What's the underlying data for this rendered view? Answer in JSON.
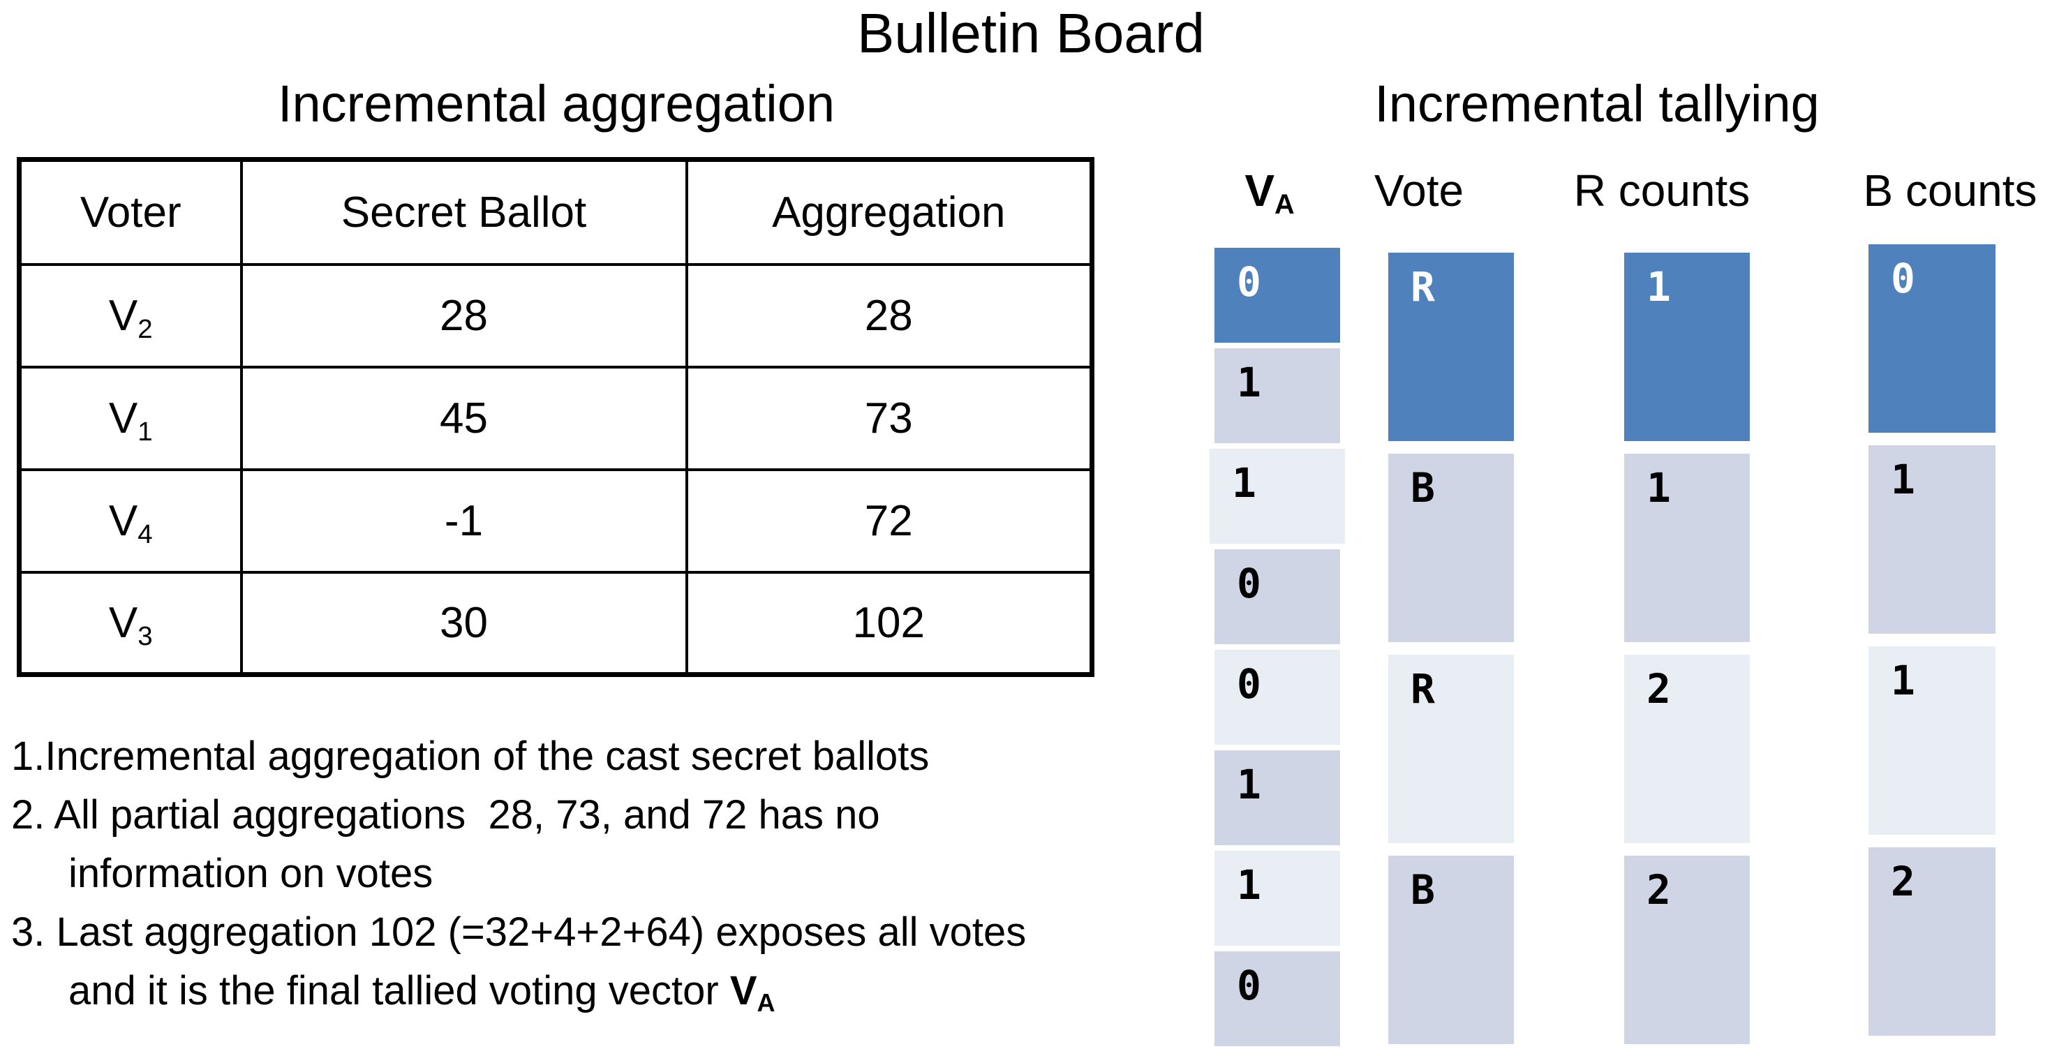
{
  "title": "Bulletin Board",
  "aggregation": {
    "heading": "Incremental aggregation",
    "table": {
      "columns": [
        "Voter",
        "Secret Ballot",
        "Aggregation"
      ],
      "rows": [
        {
          "voter": {
            "base": "V",
            "sub": "2"
          },
          "secret_ballot": "28",
          "aggregation": "28"
        },
        {
          "voter": {
            "base": "V",
            "sub": "1"
          },
          "secret_ballot": "45",
          "aggregation": "73"
        },
        {
          "voter": {
            "base": "V",
            "sub": "4"
          },
          "secret_ballot": "-1",
          "aggregation": "72"
        },
        {
          "voter": {
            "base": "V",
            "sub": "3"
          },
          "secret_ballot": "30",
          "aggregation": "102"
        }
      ]
    },
    "notes": [
      {
        "text": "1.Incremental aggregation of the cast secret ballots",
        "indent": false
      },
      {
        "text": "2. All partial aggregations  28, 73, and 72 has no",
        "indent": false
      },
      {
        "text": "information on votes",
        "indent": true
      },
      {
        "text": "3. Last aggregation 102 (=32+4+2+64) exposes all votes",
        "indent": false
      },
      {
        "text": "and it is the final tallied voting vector ",
        "indent": true,
        "vector": {
          "base": "V",
          "sub": "A"
        }
      }
    ]
  },
  "tallying": {
    "heading": "Incremental tallying",
    "columns": [
      {
        "id": "va",
        "header": {
          "base": "V",
          "sub": "A",
          "bold": true
        },
        "cells": [
          {
            "text": "0",
            "tone": "dark"
          },
          {
            "text": "1",
            "tone": "medium"
          },
          {
            "text": "1",
            "tone": "light"
          },
          {
            "text": "0",
            "tone": "medium"
          },
          {
            "text": "0",
            "tone": "light"
          },
          {
            "text": "1",
            "tone": "medium"
          },
          {
            "text": "1",
            "tone": "light"
          },
          {
            "text": "0",
            "tone": "medium"
          }
        ]
      },
      {
        "id": "vote",
        "header": {
          "base": "Vote",
          "bold": false
        },
        "cells": [
          {
            "text": "R",
            "tone": "dark"
          },
          {
            "text": "B",
            "tone": "medium"
          },
          {
            "text": "R",
            "tone": "light"
          },
          {
            "text": "B",
            "tone": "medium"
          }
        ]
      },
      {
        "id": "r-counts",
        "header": {
          "base": "R counts",
          "bold": false
        },
        "cells": [
          {
            "text": "1",
            "tone": "dark"
          },
          {
            "text": "1",
            "tone": "medium"
          },
          {
            "text": "2",
            "tone": "light"
          },
          {
            "text": "2",
            "tone": "medium"
          }
        ]
      },
      {
        "id": "b-counts",
        "header": {
          "base": "B counts",
          "bold": false
        },
        "cells": [
          {
            "text": "0",
            "tone": "dark"
          },
          {
            "text": "1",
            "tone": "medium"
          },
          {
            "text": "1",
            "tone": "light"
          },
          {
            "text": "2",
            "tone": "medium"
          }
        ]
      }
    ]
  },
  "colors": {
    "highlight_blue": "#4F81BD",
    "band_medium": "#CFD5E5",
    "band_light": "#E9EDF4",
    "text_on_blue": "#FFFFFF",
    "text_dark": "#000000"
  }
}
